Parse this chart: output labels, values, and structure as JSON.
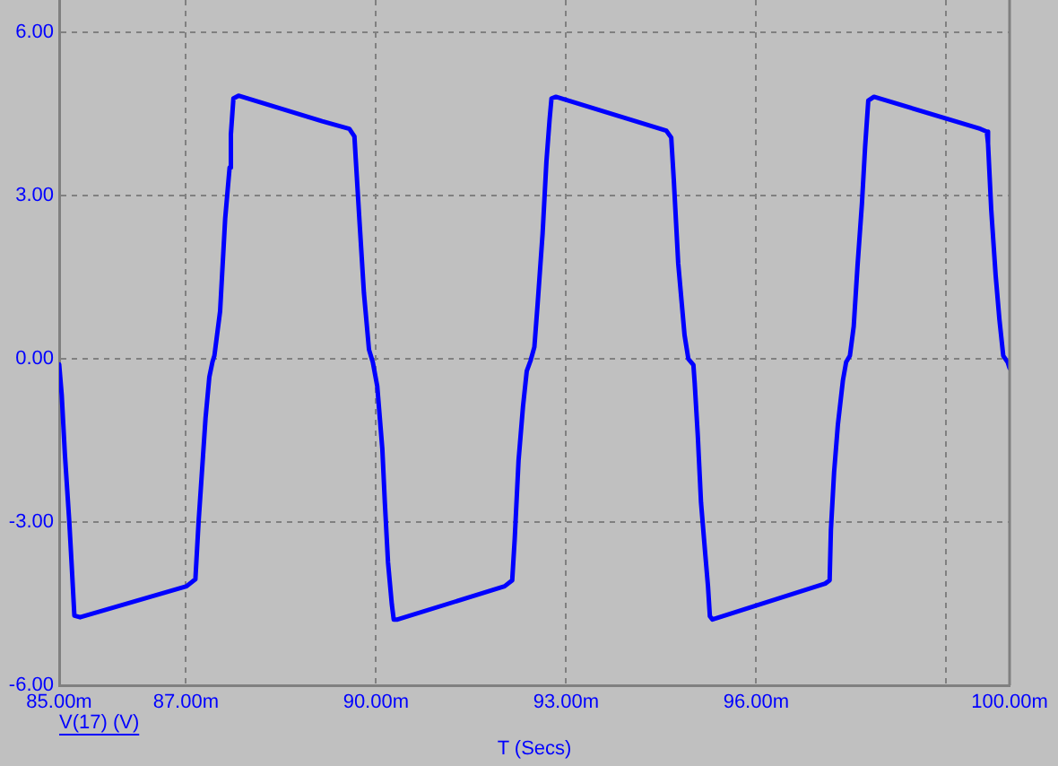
{
  "chart_data": {
    "type": "line",
    "xlabel": "T (Secs)",
    "x": [
      85,
      85.04,
      85.09,
      85.16,
      85.2,
      85.24,
      85.33,
      87.01,
      87.15,
      87.2,
      87.31,
      87.37,
      87.42,
      87.45,
      87.54,
      87.62,
      87.69,
      87.71,
      87.75,
      87.83,
      89.15,
      89.58,
      89.66,
      89.68,
      89.74,
      89.81,
      89.89,
      89.95,
      90.02,
      90.1,
      90.14,
      90.19,
      90.25,
      90.28,
      90.34,
      92.03,
      92.15,
      92.19,
      92.25,
      92.32,
      92.38,
      92.44,
      92.5,
      92.55,
      92.63,
      92.69,
      92.74,
      92.77,
      92.84,
      94.58,
      94.66,
      94.7,
      94.77,
      94.87,
      94.93,
      95.01,
      95.03,
      95.08,
      95.13,
      95.2,
      95.24,
      95.27,
      95.31,
      97.09,
      97.16,
      97.18,
      97.23,
      97.29,
      97.37,
      97.42,
      97.48,
      97.54,
      97.6,
      97.67,
      97.72,
      97.77,
      97.86,
      99.54,
      99.64,
      99.66,
      99.71,
      99.78,
      99.84,
      99.9,
      99.97,
      100
    ],
    "series": [
      {
        "name": "V(17) (V)",
        "color": "#0000ff",
        "values": [
          -0.1,
          -0.66,
          -1.75,
          -3.0,
          -3.85,
          -4.72,
          -4.75,
          -4.18,
          -4.05,
          -3.0,
          -1.09,
          -0.33,
          -0.05,
          0.06,
          0.88,
          2.58,
          3.52,
          4.13,
          4.79,
          4.84,
          4.37,
          4.23,
          4.09,
          3.69,
          2.53,
          1.21,
          0.17,
          -0.06,
          -0.5,
          -1.65,
          -2.64,
          -3.74,
          -4.51,
          -4.79,
          -4.79,
          -4.18,
          -4.07,
          -3.3,
          -1.87,
          -0.88,
          -0.22,
          -0.03,
          0.22,
          0.99,
          2.31,
          3.63,
          4.4,
          4.79,
          4.82,
          4.2,
          4.07,
          3.3,
          1.76,
          0.44,
          0,
          -0.11,
          -0.44,
          -1.43,
          -2.64,
          -3.63,
          -4.18,
          -4.73,
          -4.79,
          -4.13,
          -4.07,
          -3.14,
          -2.09,
          -1.21,
          -0.39,
          -0.06,
          0.06,
          0.6,
          1.71,
          2.86,
          3.9,
          4.75,
          4.82,
          4.23,
          4.18,
          3.96,
          2.75,
          1.54,
          0.72,
          0.06,
          -0.06,
          -0.17
        ]
      }
    ],
    "xlim": [
      85,
      100
    ],
    "xticks": [
      {
        "value": 85,
        "label": "85.00m"
      },
      {
        "value": 87,
        "label": "87.00m"
      },
      {
        "value": 90,
        "label": "90.00m"
      },
      {
        "value": 93,
        "label": "93.00m"
      },
      {
        "value": 96,
        "label": "96.00m"
      },
      {
        "value": 99,
        "label": null
      },
      {
        "value": 100,
        "label": "100.00m"
      }
    ],
    "ylim": [
      -6,
      6.6
    ],
    "yticks": [
      {
        "value": -6,
        "label": "-6.00"
      },
      {
        "value": -3,
        "label": "-3.00"
      },
      {
        "value": 0,
        "label": "0.00"
      },
      {
        "value": 3,
        "label": "3.00"
      },
      {
        "value": 6,
        "label": "6.00"
      }
    ],
    "grid": true,
    "legend": "bottom left",
    "marker": "none",
    "line_style": "solid"
  }
}
